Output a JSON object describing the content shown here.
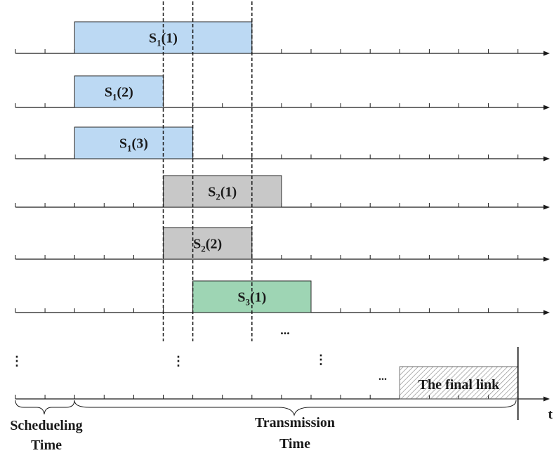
{
  "colors": {
    "s1": "#bcd9f3",
    "s2": "#c8c8c8",
    "s3": "#9ed5b4",
    "final": "#ffffff",
    "axis": "#1a1a1a"
  },
  "rows": [
    {
      "blocks": [
        {
          "base": "S",
          "sub": "1",
          "idx": "(1)",
          "start": 2,
          "end": 8,
          "color": "s1"
        }
      ]
    },
    {
      "blocks": [
        {
          "base": "S",
          "sub": "1",
          "idx": "(2)",
          "start": 2,
          "end": 5,
          "color": "s1"
        }
      ]
    },
    {
      "blocks": [
        {
          "base": "S",
          "sub": "1",
          "idx": "(3)",
          "start": 2,
          "end": 6,
          "color": "s1"
        }
      ]
    },
    {
      "blocks": [
        {
          "base": "S",
          "sub": "2",
          "idx": "(1)",
          "start": 5,
          "end": 9,
          "color": "s2"
        }
      ]
    },
    {
      "blocks": [
        {
          "base": "S",
          "sub": "2",
          "idx": "(2)",
          "start": 5,
          "end": 8,
          "color": "s2"
        }
      ]
    },
    {
      "blocks": [
        {
          "base": "S",
          "sub": "3",
          "idx": "(1)",
          "start": 6,
          "end": 10,
          "color": "s3"
        }
      ]
    }
  ],
  "final_block": {
    "label": "The final link",
    "start": 13,
    "end": 17
  },
  "dashed_lines_at": [
    5,
    6,
    8
  ],
  "axis_label": "t",
  "ellipses": {
    "horizontal": "...",
    "vertical": "⋮"
  },
  "labels": {
    "scheduling_line1": "Schedueling",
    "scheduling_line2": "Time",
    "transmission_line1": "Transmission",
    "transmission_line2": "Time"
  }
}
